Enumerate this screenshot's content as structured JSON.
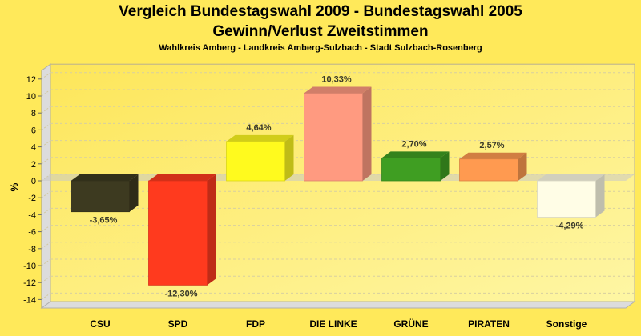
{
  "chart_data": {
    "type": "bar",
    "title": "Vergleich Bundestagswahl 2009 - Bundestagswahl 2005",
    "subtitle": "Gewinn/Verlust Zweitstimmen",
    "caption": "Wahlkreis Amberg - Landkreis Amberg-Sulzbach - Stadt Sulzbach-Rosenberg",
    "xlabel": "",
    "ylabel": "%",
    "ylim": [
      -15,
      13
    ],
    "yticks": [
      12,
      10,
      8,
      6,
      4,
      2,
      0,
      -2,
      -4,
      -6,
      -8,
      -10,
      -12,
      -14
    ],
    "grid": true,
    "categories": [
      "CSU",
      "SPD",
      "FDP",
      "DIE LINKE",
      "GRÜNE",
      "PIRATEN",
      "Sonstige"
    ],
    "values": [
      -3.65,
      -12.3,
      4.64,
      10.33,
      2.7,
      2.57,
      -4.29
    ],
    "labels": [
      "-3,65%",
      "-12,30%",
      "4,64%",
      "10,33%",
      "2,70%",
      "2,57%",
      "-4,29%"
    ],
    "colors": [
      "#3d3a20",
      "#ff3a1e",
      "#fffa1e",
      "#ff9a80",
      "#3f9e22",
      "#ff9a50",
      "#fffde6"
    ]
  }
}
